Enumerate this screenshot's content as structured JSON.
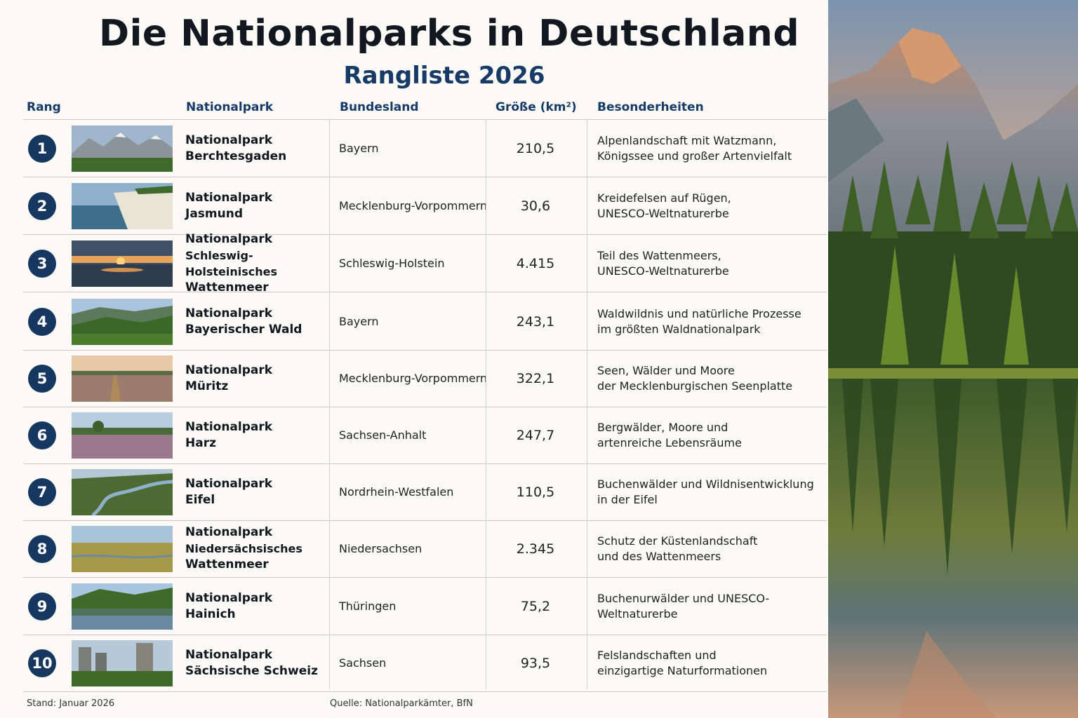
{
  "title": "Die Nationalparks in Deutschland",
  "subtitle": "Rangliste 2026",
  "columns": {
    "rank": "Rang",
    "park": "Nationalpark",
    "state": "Bundesland",
    "size": "Größe (km²)",
    "features": "Besonderheiten"
  },
  "rows": [
    {
      "rank": "1",
      "name1": "Nationalpark",
      "name2": "Berchtesgaden",
      "name3": "",
      "state": "Bayern",
      "size": "210,5",
      "feat1": "Alpenlandschaft mit Watzmann,",
      "feat2": "Königssee und großer Artenvielfalt",
      "image": "alpine-mountains-image"
    },
    {
      "rank": "2",
      "name1": "Nationalpark",
      "name2": "Jasmund",
      "name3": "",
      "state": "Mecklenburg-Vorpommern",
      "size": "30,6",
      "feat1": "Kreidefelsen auf Rügen,",
      "feat2": "UNESCO-Weltnaturerbe",
      "image": "chalk-cliffs-image"
    },
    {
      "rank": "3",
      "name1": "Nationalpark",
      "name2": "Schleswig-Holsteinisches",
      "name3": "Wattenmeer",
      "state": "Schleswig-Holstein",
      "size": "4.415",
      "feat1": "Teil des Wattenmeers,",
      "feat2": "UNESCO-Weltnaturerbe",
      "image": "mudflat-sunset-image"
    },
    {
      "rank": "4",
      "name1": "Nationalpark",
      "name2": "Bayerischer Wald",
      "name3": "",
      "state": "Bayern",
      "size": "243,1",
      "feat1": "Waldwildnis und natürliche Prozesse",
      "feat2": "im größten Waldnationalpark",
      "image": "forest-hills-image"
    },
    {
      "rank": "5",
      "name1": "Nationalpark",
      "name2": "Müritz",
      "name3": "",
      "state": "Mecklenburg-Vorpommern",
      "size": "322,1",
      "feat1": "Seen, Wälder und Moore",
      "feat2": "der Mecklenburgischen Seenplatte",
      "image": "heath-landscape-image"
    },
    {
      "rank": "6",
      "name1": "Nationalpark",
      "name2": "Harz",
      "name3": "",
      "state": "Sachsen-Anhalt",
      "size": "247,7",
      "feat1": "Bergwälder, Moore und",
      "feat2": "artenreiche Lebensräume",
      "image": "heather-meadow-image"
    },
    {
      "rank": "7",
      "name1": "Nationalpark",
      "name2": "Eifel",
      "name3": "",
      "state": "Nordrhein-Westfalen",
      "size": "110,5",
      "feat1": "Buchenwälder und Wildnisentwicklung",
      "feat2": "in der Eifel",
      "image": "river-valley-image"
    },
    {
      "rank": "8",
      "name1": "Nationalpark",
      "name2": "Niedersächsisches",
      "name3": "Wattenmeer",
      "state": "Niedersachsen",
      "size": "2.345",
      "feat1": "Schutz der Küstenlandschaft",
      "feat2": "und des Wattenmeers",
      "image": "salt-marsh-image"
    },
    {
      "rank": "9",
      "name1": "Nationalpark",
      "name2": "Hainich",
      "name3": "",
      "state": "Thüringen",
      "size": "75,2",
      "feat1": "Buchenurwälder und UNESCO-",
      "feat2": "Weltnaturerbe",
      "image": "forest-lake-image"
    },
    {
      "rank": "10",
      "name1": "Nationalpark",
      "name2": "Sächsische Schweiz",
      "name3": "",
      "state": "Sachsen",
      "size": "93,5",
      "feat1": "Felslandschaften und",
      "feat2": "einzigartige Naturformationen",
      "image": "sandstone-rocks-image"
    }
  ],
  "footer": {
    "date": "Stand: Januar 2026",
    "source": "Quelle: Nationalparkämter, BfN"
  },
  "colors": {
    "accent": "#173a66",
    "badge": "#16375f",
    "title": "#111820"
  }
}
